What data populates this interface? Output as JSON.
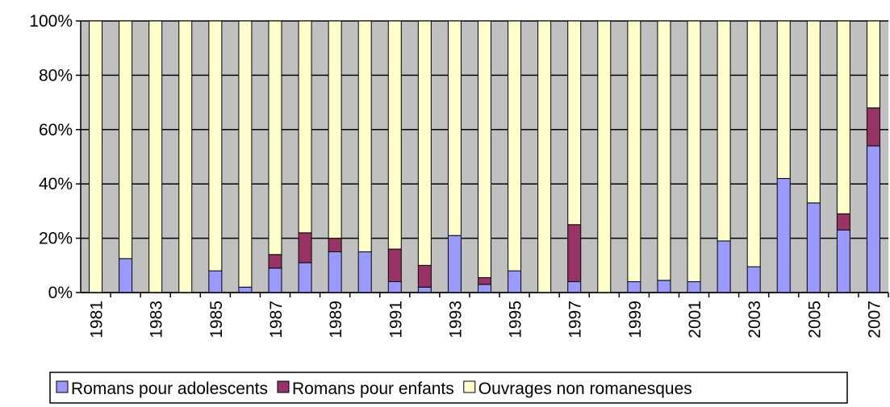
{
  "chart_data": {
    "type": "stacked-bar-100",
    "categories": [
      "1981",
      null,
      "1983",
      null,
      "1985",
      null,
      "1987",
      null,
      "1989",
      null,
      "1991",
      null,
      "1993",
      null,
      "1995",
      null,
      "1997",
      null,
      "1999",
      null,
      "2001",
      null,
      "2003",
      null,
      "2005",
      null,
      "2007"
    ],
    "series": [
      {
        "name": "Romans pour adolescents",
        "color": "#9999ff",
        "values": [
          0,
          12.5,
          0,
          0,
          8,
          2,
          9,
          11,
          15,
          15,
          4,
          2,
          21,
          3,
          8,
          0,
          4,
          0,
          4,
          4.5,
          4,
          19,
          9.5,
          42,
          33,
          23,
          54
        ]
      },
      {
        "name": "Romans pour enfants",
        "color": "#993366",
        "values": [
          0,
          0,
          0,
          0,
          0,
          0,
          5,
          11,
          5,
          0,
          12,
          8,
          0,
          2.5,
          0,
          0,
          21,
          0,
          0,
          0,
          0,
          0,
          0,
          0,
          0,
          6,
          14
        ]
      },
      {
        "name": "Ouvrages non romanesques",
        "color": "#ffffcc",
        "values": [
          100,
          87.5,
          100,
          100,
          92,
          98,
          86,
          78,
          80,
          85,
          84,
          90,
          79,
          94.5,
          92,
          100,
          75,
          100,
          96,
          95.5,
          96,
          81,
          90.5,
          58,
          67,
          71,
          32
        ]
      }
    ],
    "ylim": [
      0,
      100
    ],
    "yticks": [
      {
        "value": 0,
        "label": "0%"
      },
      {
        "value": 20,
        "label": "20%"
      },
      {
        "value": 40,
        "label": "40%"
      },
      {
        "value": 60,
        "label": "60%"
      },
      {
        "value": 80,
        "label": "80%"
      },
      {
        "value": 100,
        "label": "100%"
      }
    ],
    "grid": true,
    "plot_background": "#c0c0c0",
    "legend": "bottom"
  }
}
